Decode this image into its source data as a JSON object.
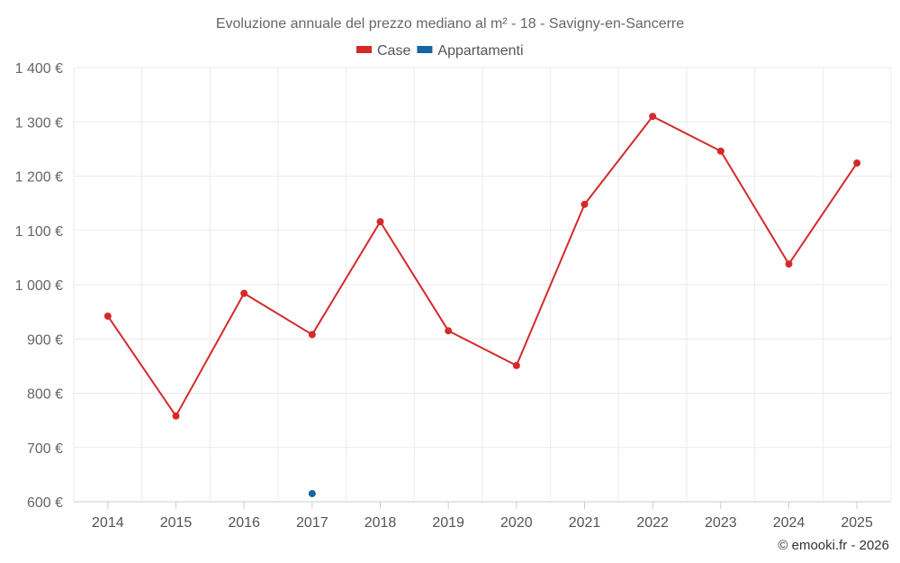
{
  "chart_data": {
    "type": "line",
    "title": "Evoluzione annuale del prezzo mediano al m² - 18 - Savigny-en-Sancerre",
    "categories": [
      "2014",
      "2015",
      "2016",
      "2017",
      "2018",
      "2019",
      "2020",
      "2021",
      "2022",
      "2023",
      "2024",
      "2025"
    ],
    "series": [
      {
        "name": "Case",
        "color": "#d42a2a",
        "values": [
          942,
          758,
          984,
          908,
          1116,
          915,
          851,
          1148,
          1310,
          1246,
          1038,
          1224
        ]
      },
      {
        "name": "Appartamenti",
        "color": "#1565a0",
        "values": [
          null,
          null,
          null,
          615,
          null,
          null,
          null,
          null,
          null,
          null,
          null,
          null
        ]
      }
    ],
    "ylim": [
      600,
      1400
    ],
    "yticks": [
      600,
      700,
      800,
      900,
      1000,
      1100,
      1200,
      1300,
      1400
    ],
    "ytick_labels": [
      "600 €",
      "700 €",
      "800 €",
      "900 €",
      "1 000 €",
      "1 100 €",
      "1 200 €",
      "1 300 €",
      "1 400 €"
    ],
    "xlabel": "",
    "ylabel": "",
    "grid": true,
    "legend_position": "top-center"
  },
  "credit": "© emooki.fr - 2026"
}
